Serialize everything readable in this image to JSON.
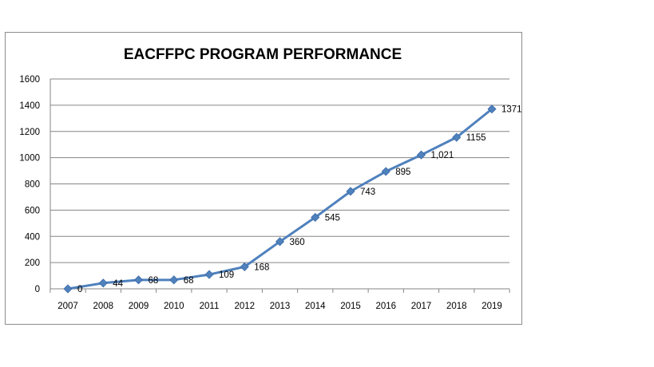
{
  "chart_data": {
    "type": "line",
    "title": "EACFFPC PROGRAM PERFORMANCE",
    "xlabel": "",
    "ylabel": "",
    "categories": [
      "2007",
      "2008",
      "2009",
      "2010",
      "2011",
      "2012",
      "2013",
      "2014",
      "2015",
      "2016",
      "2017",
      "2018",
      "2019"
    ],
    "series": [
      {
        "values": [
          0,
          44,
          68,
          68,
          109,
          168,
          360,
          545,
          743,
          895,
          1021,
          1155,
          1371
        ],
        "data_labels": [
          "0",
          "44",
          "68",
          "68",
          "109",
          "168",
          "360",
          "545",
          "743",
          "895",
          "1,021",
          "1155",
          "1371"
        ],
        "color": "#4f81bd"
      }
    ],
    "ylim": [
      0,
      1600
    ],
    "yticks": [
      "0",
      "200",
      "400",
      "600",
      "800",
      "1000",
      "1200",
      "1400",
      "1600"
    ],
    "grid": true,
    "legend": "none",
    "marker": "diamond"
  }
}
